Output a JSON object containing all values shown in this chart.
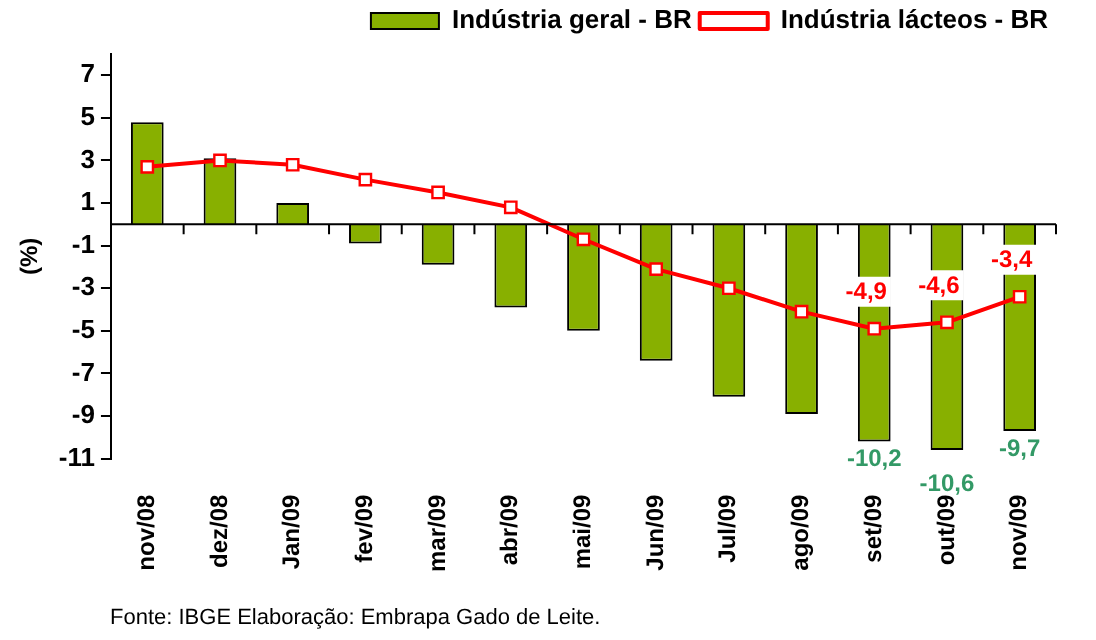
{
  "chart_data": {
    "type": "bar",
    "ylabel": "(%)",
    "categories": [
      "nov/08",
      "dez/08",
      "Jan/09",
      "fev/09",
      "mar/09",
      "abr/09",
      "mai/09",
      "Jun/09",
      "Jul/09",
      "ago/09",
      "set/09",
      "out/09",
      "nov/09"
    ],
    "series": [
      {
        "name": "Indústria geral - BR",
        "color": "#88b000",
        "values": [
          4.8,
          3.1,
          1.0,
          -0.9,
          -1.9,
          -3.9,
          -5.0,
          -6.4,
          -8.1,
          -8.9,
          -10.2,
          -10.6,
          -9.7
        ],
        "value_labels": [
          null,
          null,
          null,
          null,
          null,
          null,
          null,
          null,
          null,
          null,
          "-10,2",
          "-10,6",
          "-9,7"
        ]
      },
      {
        "name": "Indústria lácteos - BR",
        "type": "line",
        "color": "#ff0000",
        "marker": "square",
        "values": [
          2.7,
          3.0,
          2.8,
          2.1,
          1.5,
          0.8,
          -0.7,
          -2.1,
          -3.0,
          -4.1,
          -4.9,
          -4.6,
          -3.4
        ],
        "value_labels": [
          null,
          null,
          null,
          null,
          null,
          null,
          null,
          null,
          null,
          null,
          "-4,9",
          "-4,6",
          "-3,4"
        ]
      }
    ],
    "ylim": [
      -11,
      8
    ],
    "yticks": [
      7,
      5,
      3,
      1,
      -1,
      -3,
      -5,
      -7,
      -9,
      -11
    ],
    "grid": false,
    "legend": "top right",
    "annotations": [
      "Fonte: IBGE Elaboração: Embrapa Gado de Leite."
    ]
  }
}
